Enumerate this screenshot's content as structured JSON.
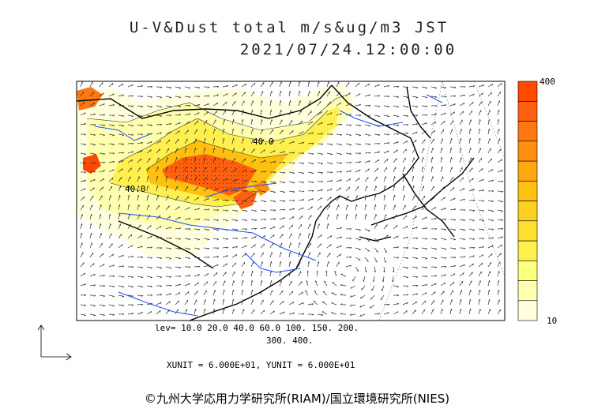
{
  "title_line1": "U-V&Dust total m/s&ug/m3 JST",
  "title_line2": "2021/07/24.12:00:00",
  "legend": {
    "max_label": "400",
    "min_label": "10",
    "colors": [
      "#ffffdd",
      "#ffffb0",
      "#ffff80",
      "#fff050",
      "#ffe030",
      "#ffd020",
      "#ffc010",
      "#ffa810",
      "#ff9010",
      "#ff7810",
      "#ff6010",
      "#ff4800"
    ]
  },
  "levels_line1": "lev= 10.0 20.0 40.0 60.0 100. 150. 200.",
  "levels_line2": "300. 400.",
  "units_line": "XUNIT = 6.000E+01, YUNIT = 6.000E+01",
  "contour_labels": [
    "40.0",
    "40.0"
  ],
  "copyright": "©九州大学応用力学研究所(RIAM)/国立環境研究所(NIES)"
}
